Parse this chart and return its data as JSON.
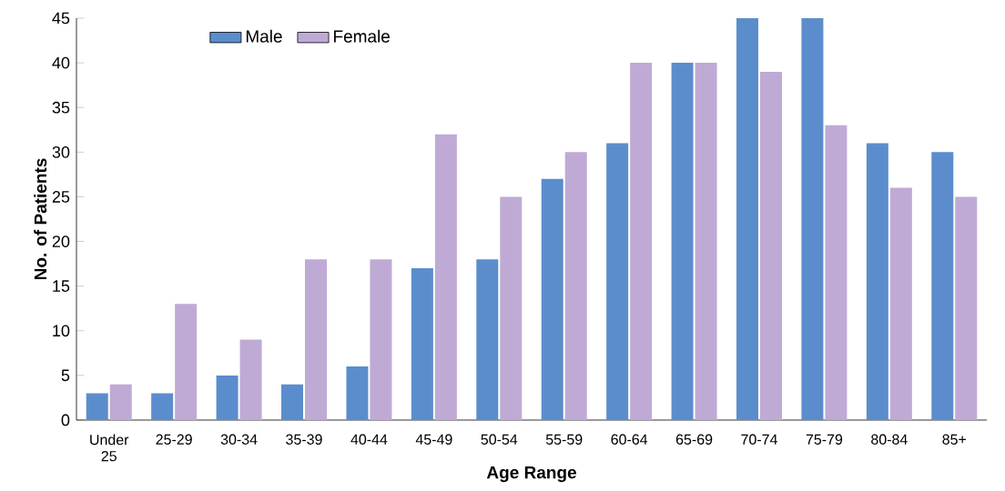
{
  "chart_data": {
    "type": "bar",
    "xlabel": "Age Range",
    "ylabel": "No. of Patients",
    "categories": [
      "Under 25",
      "25-29",
      "30-34",
      "35-39",
      "40-44",
      "45-49",
      "50-54",
      "55-59",
      "60-64",
      "65-69",
      "70-74",
      "75-79",
      "80-84",
      "85+"
    ],
    "series": [
      {
        "name": "Male",
        "color": "#5b8dcd",
        "values": [
          3,
          3,
          5,
          4,
          6,
          17,
          18,
          27,
          31,
          40,
          45,
          45,
          31,
          30
        ]
      },
      {
        "name": "Female",
        "color": "#bfaad5",
        "values": [
          4,
          13,
          9,
          18,
          18,
          32,
          25,
          30,
          40,
          40,
          39,
          33,
          26,
          25
        ]
      }
    ],
    "ylim": [
      0,
      45
    ],
    "yticks": [
      0,
      5,
      10,
      15,
      20,
      25,
      30,
      35,
      40,
      45
    ],
    "grid": false,
    "legend": "top left"
  }
}
